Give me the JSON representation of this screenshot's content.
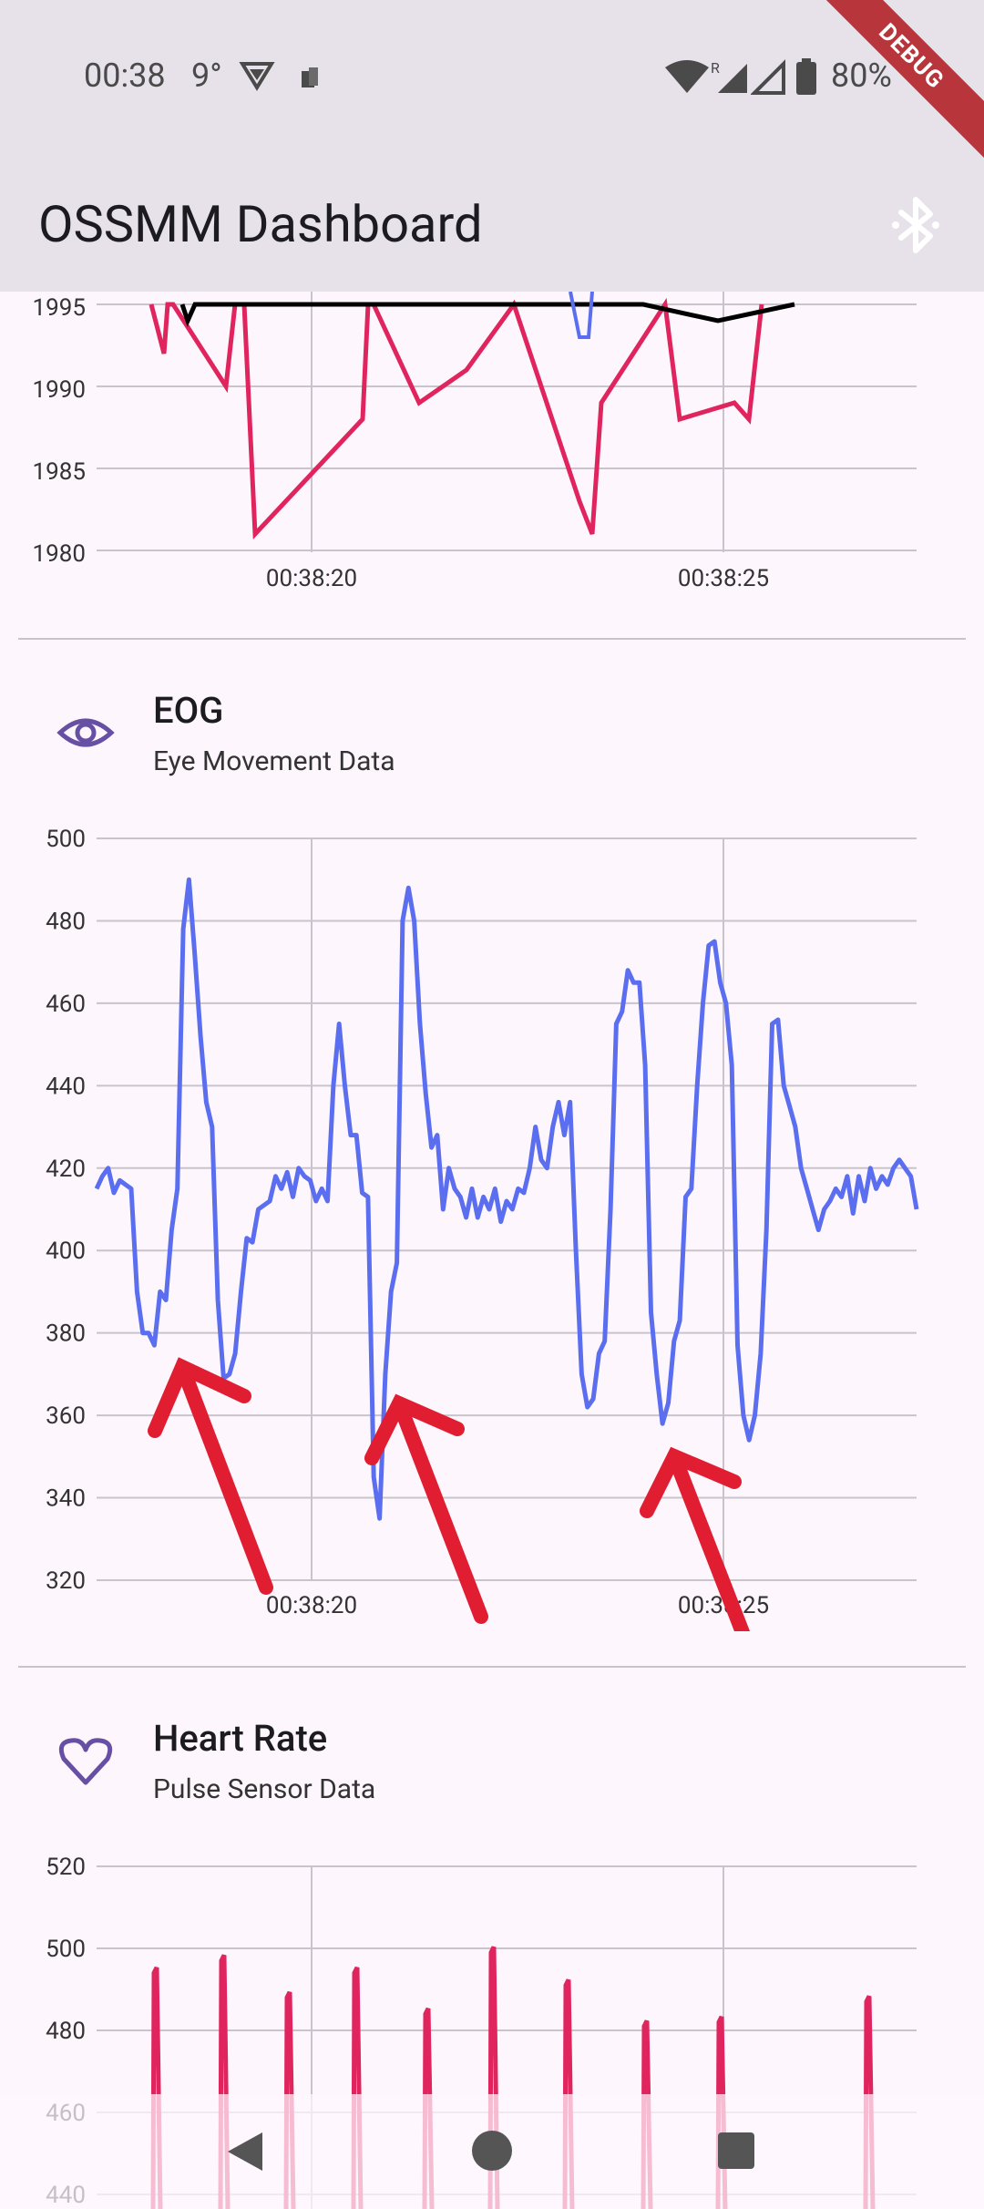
{
  "status_bar": {
    "time": "00:38",
    "temperature": "9°",
    "battery": "80%"
  },
  "app_bar": {
    "title": "OSSMM Dashboard",
    "action_icon": "bluetooth-icon",
    "debug_label": "DEBUG"
  },
  "sections": {
    "top": {
      "y_ticks": [
        "1995",
        "1990",
        "1985",
        "1980"
      ],
      "x_ticks": [
        "00:38:20",
        "00:38:25"
      ]
    },
    "eog": {
      "title": "EOG",
      "subtitle": "Eye Movement Data",
      "icon": "eye-icon",
      "y_ticks": [
        "500",
        "480",
        "460",
        "440",
        "420",
        "400",
        "380",
        "360",
        "340",
        "320"
      ],
      "x_ticks": [
        "00:38:20",
        "00:38:25"
      ]
    },
    "heart": {
      "title": "Heart Rate",
      "subtitle": "Pulse Sensor Data",
      "icon": "heart-icon",
      "y_ticks": [
        "520",
        "500",
        "480",
        "460",
        "440"
      ]
    }
  },
  "colors": {
    "eog_line": "#5b6ef0",
    "pulse_line": "#e0245e",
    "annotation": "#e11d32",
    "icon": "#6750a4"
  },
  "chart_data": [
    {
      "type": "line",
      "title": "",
      "ylim": [
        1980,
        1995
      ],
      "x_ticks": [
        "00:38:20",
        "00:38:25"
      ],
      "series": [
        {
          "color": "#e0245e",
          "values": [
            1995,
            1992,
            1995,
            1995,
            1990,
            1995,
            1995,
            1981,
            1988,
            1995,
            1995,
            1989,
            1991,
            1995,
            1983,
            1981,
            1989,
            1995,
            1988,
            1989,
            1988,
            1995
          ]
        },
        {
          "color": "#000000",
          "values": [
            1995,
            1994,
            1995,
            1995,
            1995,
            1994,
            1995
          ]
        }
      ]
    },
    {
      "type": "line",
      "title": "EOG",
      "ylim": [
        320,
        500
      ],
      "x_ticks": [
        "00:38:20",
        "00:38:25"
      ],
      "series": [
        {
          "color": "#5b6ef0",
          "values": [
            415,
            418,
            420,
            414,
            417,
            416,
            415,
            390,
            380,
            380,
            377,
            390,
            388,
            405,
            415,
            478,
            490,
            472,
            452,
            436,
            430,
            388,
            369,
            370,
            375,
            390,
            403,
            402,
            410,
            411,
            412,
            418,
            415,
            419,
            413,
            420,
            418,
            417,
            412,
            415,
            412,
            440,
            455,
            440,
            428,
            428,
            414,
            413,
            345,
            335,
            370,
            390,
            397,
            480,
            488,
            480,
            455,
            438,
            425,
            428,
            410,
            420,
            415,
            413,
            408,
            415,
            408,
            413,
            410,
            415,
            407,
            412,
            410,
            415,
            414,
            420,
            430,
            422,
            420,
            430,
            436,
            428,
            436,
            400,
            370,
            362,
            364,
            375,
            378,
            410,
            455,
            458,
            468,
            465,
            465,
            445,
            385,
            370,
            358,
            363,
            378,
            383,
            413,
            415,
            440,
            460,
            474,
            475,
            465,
            460,
            445,
            377,
            360,
            354,
            360,
            375,
            405,
            455,
            456,
            440,
            435,
            430,
            420,
            415,
            410,
            405,
            410,
            412,
            415,
            413,
            418,
            409,
            418,
            412,
            420,
            415,
            418,
            416,
            420,
            422,
            420,
            418,
            410
          ]
        }
      ]
    },
    {
      "type": "line",
      "title": "Heart Rate",
      "ylim": [
        440,
        520
      ],
      "series": [
        {
          "color": "#e0245e",
          "peaks": [
            494,
            497,
            488,
            494,
            484,
            499,
            491,
            481,
            482,
            487
          ]
        }
      ]
    }
  ]
}
